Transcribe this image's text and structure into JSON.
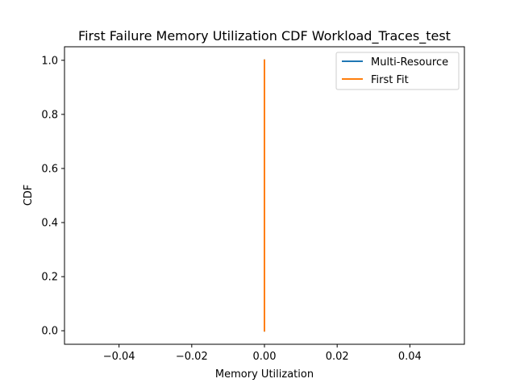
{
  "chart_data": {
    "type": "line",
    "title": "First Failure Memory Utilization CDF Workload_Traces_test",
    "xlabel": "Memory Utilization",
    "ylabel": "CDF",
    "xlim": [
      -0.055,
      0.055
    ],
    "ylim": [
      -0.05,
      1.05
    ],
    "xticks": [
      -0.04,
      -0.02,
      0.0,
      0.02,
      0.04
    ],
    "xtick_labels": [
      "−0.04",
      "−0.02",
      "0.00",
      "0.02",
      "0.04"
    ],
    "yticks": [
      0.0,
      0.2,
      0.4,
      0.6,
      0.8,
      1.0
    ],
    "ytick_labels": [
      "0.0",
      "0.2",
      "0.4",
      "0.6",
      "0.8",
      "1.0"
    ],
    "grid": false,
    "legend_position": "top-right",
    "series": [
      {
        "name": "Multi-Resource",
        "color": "#1f77b4",
        "x": [
          0.0,
          0.0
        ],
        "y": [
          0.0,
          1.0
        ]
      },
      {
        "name": "First Fit",
        "color": "#ff7f0e",
        "x": [
          0.0,
          0.0
        ],
        "y": [
          0.0,
          1.0
        ]
      }
    ]
  }
}
